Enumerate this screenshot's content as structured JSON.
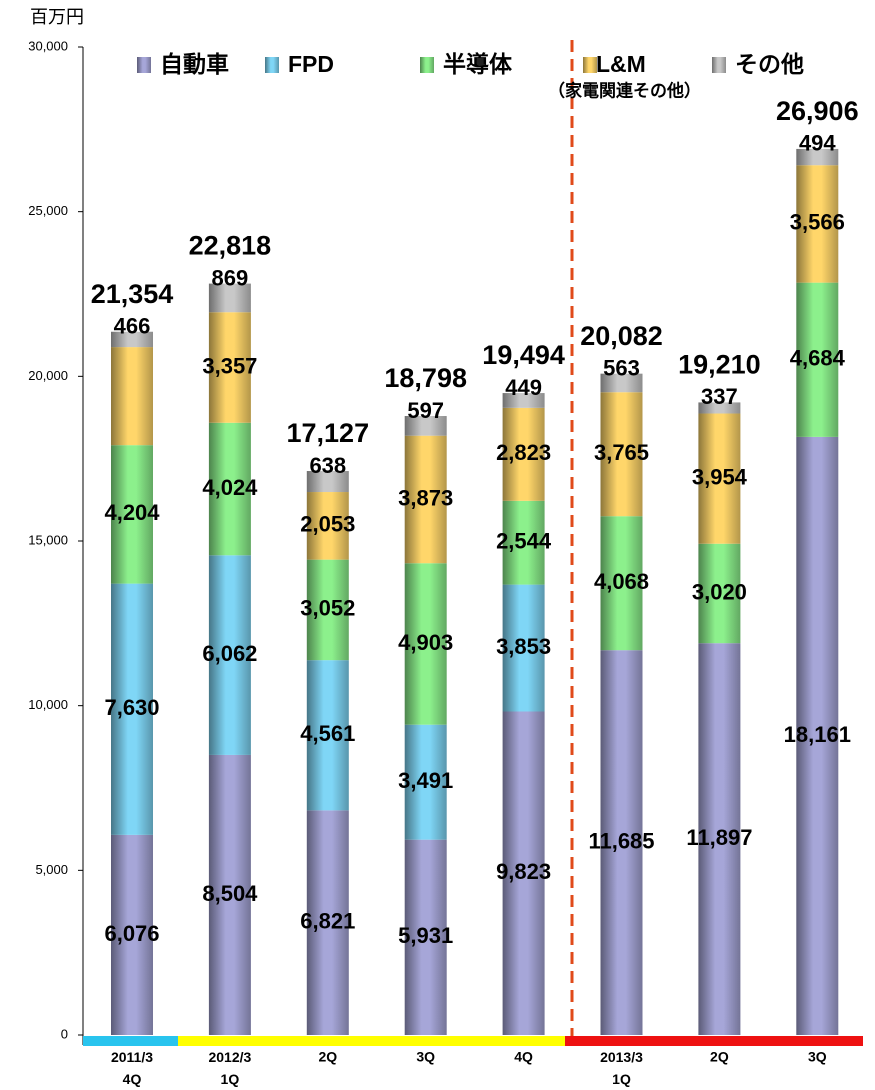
{
  "chart_data": {
    "type": "stacked_bar",
    "unit_label": "百万円",
    "categories": [
      "2011/3\n4Q",
      "2012/3\n1Q",
      "2Q",
      "3Q",
      "4Q",
      "2013/3\n1Q",
      "2Q",
      "3Q"
    ],
    "series": [
      {
        "name": "自動車",
        "color": "#a6a6d8",
        "values": [
          6076,
          8504,
          6821,
          5931,
          9823,
          11685,
          11897,
          18161
        ]
      },
      {
        "name": "FPD",
        "color": "#7fd6f6",
        "values": [
          7630,
          6062,
          4561,
          3491,
          3853,
          null,
          null,
          null
        ]
      },
      {
        "name": "半導体",
        "color": "#8cf08c",
        "values": [
          4204,
          4024,
          3052,
          4903,
          2544,
          4068,
          3020,
          4684
        ]
      },
      {
        "name": "L&M",
        "note": "（家電関連その他）",
        "color": "#ffd66a",
        "values": [
          2978,
          3357,
          2053,
          3873,
          2823,
          3765,
          3954,
          3566
        ],
        "value_labels": [
          null,
          "3,357",
          "2,053",
          "3,873",
          "2,823",
          "3,765",
          "3,954",
          "3,566"
        ]
      },
      {
        "name": "その他",
        "color": "#c8c8c8",
        "values": [
          466,
          869,
          638,
          597,
          449,
          563,
          337,
          494
        ]
      }
    ],
    "totals": [
      21354,
      22818,
      17127,
      18798,
      19494,
      20082,
      19210,
      26906
    ],
    "total_labels": [
      "21,354",
      "22,818",
      "17,127",
      "18,798",
      "19,494",
      "20,082",
      "19,210",
      "26,906"
    ],
    "ylim": [
      0,
      30000
    ],
    "yticks": [
      0,
      {
        "value": 5000,
        "label": "5,000"
      },
      {
        "value": 10000,
        "label": "10,000"
      },
      {
        "value": 15000,
        "label": "15,000"
      },
      {
        "value": 20000,
        "label": "20,000"
      },
      {
        "value": 25000,
        "label": "25,000"
      },
      {
        "value": 30000,
        "label": "30,000"
      }
    ]
  }
}
